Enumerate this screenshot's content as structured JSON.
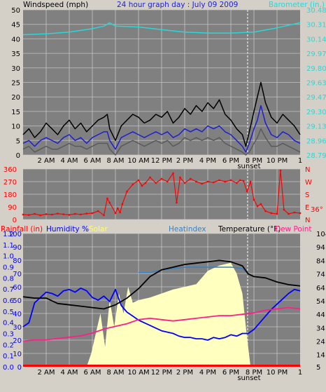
{
  "header": {
    "windspeed_label": "Windspeed (mph)",
    "title": "24 hour graph day : July 09 2009",
    "barometer_label": "Barometer (in.)"
  },
  "legend": {
    "rainfall": "Rainfall (in)",
    "humidity": "Humidity %",
    "solar": "Solar",
    "heatindex": "Heatindex",
    "temperature": "Temperature (°F)",
    "dewpoint": "Dew Point"
  },
  "colors": {
    "plot_bg": "#808080",
    "page_bg": "#d4d0c8",
    "wind_gust": "#000000",
    "wind_avg": "#1f1fd0",
    "wind_low": "#5a5a5a",
    "barometer": "#27d8d8",
    "direction": "#ff0000",
    "rainfall_label": "#ff0000",
    "humidity": "#0000ff",
    "solar": "#ffffc0",
    "solar_label": "#ffff66",
    "heatindex": "#3a7fc0",
    "temperature": "#000000",
    "dewpoint": "#ff1f8a",
    "rain_axis": "#0000ff",
    "gridlines": "#c8c8c8"
  },
  "time_axis": {
    "labels": [
      "2 AM",
      "4 AM",
      "6 AM",
      "8 AM",
      "10 AM",
      "12 PM",
      "2 PM",
      "4 PM",
      "6 PM",
      "8 PM",
      "10 PM",
      "1"
    ],
    "sunset_label": "sunset"
  },
  "chart_data": [
    {
      "type": "line",
      "panel": "wind",
      "x_unit": "hours since midnight",
      "xlim": [
        0,
        24
      ],
      "left_axis": {
        "ticks": [
          0,
          5,
          10,
          15,
          20,
          25,
          30,
          35,
          40,
          45,
          50
        ],
        "ylim": [
          0,
          50
        ]
      },
      "right_axis": {
        "ticks": [
          28.79,
          28.96,
          29.13,
          29.3,
          29.47,
          29.63,
          29.8,
          29.97,
          30.14,
          30.31,
          30.48
        ]
      },
      "series": [
        {
          "name": "Gust",
          "x": [
            0,
            0.5,
            1,
            1.5,
            2,
            2.5,
            3,
            3.5,
            4,
            4.5,
            5,
            5.5,
            6,
            6.5,
            7,
            7.3,
            7.5,
            8,
            8.5,
            9,
            9.5,
            10,
            10.5,
            11,
            11.5,
            12,
            12.5,
            13,
            13.5,
            14,
            14.5,
            15,
            15.5,
            16,
            16.5,
            17,
            17.5,
            18,
            18.5,
            19,
            19.3,
            19.6,
            20,
            20.3,
            20.6,
            21,
            21.5,
            22,
            22.5,
            23,
            23.5,
            24
          ],
          "values": [
            7,
            9,
            6,
            8,
            11,
            9,
            7,
            10,
            12,
            9,
            11,
            8,
            10,
            12,
            13,
            14,
            9,
            5,
            10,
            12,
            14,
            13,
            11,
            12,
            14,
            13,
            15,
            11,
            13,
            16,
            14,
            17,
            15,
            18,
            16,
            19,
            14,
            12,
            9,
            7,
            3,
            8,
            15,
            20,
            25,
            18,
            13,
            11,
            14,
            12,
            10,
            7
          ]
        },
        {
          "name": "Average",
          "x": [
            0,
            0.5,
            1,
            1.5,
            2,
            2.5,
            3,
            3.5,
            4,
            4.5,
            5,
            5.5,
            6,
            6.5,
            7,
            7.3,
            7.5,
            8,
            8.5,
            9,
            9.5,
            10,
            10.5,
            11,
            11.5,
            12,
            12.5,
            13,
            13.5,
            14,
            14.5,
            15,
            15.5,
            16,
            16.5,
            17,
            17.5,
            18,
            18.5,
            19,
            19.3,
            19.6,
            20,
            20.3,
            20.6,
            21,
            21.5,
            22,
            22.5,
            23,
            23.5,
            24
          ],
          "values": [
            4,
            5,
            3,
            5,
            6,
            5,
            4,
            6,
            7,
            5,
            6,
            4,
            6,
            7,
            8,
            8,
            5,
            2,
            6,
            7,
            8,
            7,
            6,
            7,
            8,
            7,
            8,
            6,
            7,
            9,
            8,
            9,
            8,
            10,
            9,
            10,
            8,
            7,
            5,
            3,
            1,
            4,
            9,
            12,
            17,
            11,
            7,
            6,
            8,
            7,
            5,
            4
          ]
        },
        {
          "name": "Low",
          "x": [
            0,
            0.5,
            1,
            1.5,
            2,
            2.5,
            3,
            3.5,
            4,
            4.5,
            5,
            5.5,
            6,
            6.5,
            7,
            7.3,
            7.5,
            8,
            8.5,
            9,
            9.5,
            10,
            10.5,
            11,
            11.5,
            12,
            12.5,
            13,
            13.5,
            14,
            14.5,
            15,
            15.5,
            16,
            16.5,
            17,
            17.5,
            18,
            18.5,
            19,
            19.3,
            19.6,
            20,
            20.3,
            20.6,
            21,
            21.5,
            22,
            22.5,
            23,
            23.5,
            24
          ],
          "values": [
            2,
            3,
            1,
            2,
            3,
            2,
            2,
            3,
            4,
            3,
            3,
            2,
            3,
            4,
            4,
            4,
            2,
            0,
            3,
            4,
            5,
            4,
            3,
            4,
            5,
            4,
            5,
            3,
            4,
            6,
            5,
            6,
            5,
            6,
            5,
            6,
            4,
            3,
            2,
            1,
            0,
            1,
            4,
            6,
            9,
            6,
            3,
            3,
            4,
            3,
            2,
            1
          ]
        },
        {
          "name": "Barometer",
          "axis": "right",
          "x": [
            0,
            2,
            4,
            6,
            7,
            7.5,
            8,
            10,
            12,
            14,
            16,
            18,
            20,
            22,
            24
          ],
          "values": [
            30.19,
            30.2,
            30.22,
            30.26,
            30.29,
            30.33,
            30.29,
            30.28,
            30.25,
            30.22,
            30.21,
            30.21,
            30.22,
            30.27,
            30.33
          ]
        }
      ]
    },
    {
      "type": "scatter",
      "panel": "direction",
      "xlim": [
        0,
        24
      ],
      "left_axis": {
        "ticks": [
          0,
          90,
          180,
          270,
          360
        ],
        "ylim": [
          0,
          360
        ]
      },
      "right_axis_labels": [
        "N",
        "E",
        "S",
        "W",
        "N"
      ],
      "annotation": "36°",
      "series": [
        {
          "name": "Direction",
          "x": [
            0,
            0.5,
            1,
            1.5,
            2,
            2.5,
            3,
            3.5,
            4,
            4.5,
            5,
            5.5,
            6,
            6.5,
            7,
            7.3,
            7.5,
            8,
            8.2,
            8.4,
            8.6,
            9,
            9.5,
            10,
            10.3,
            10.6,
            11,
            11.5,
            12,
            12.5,
            13,
            13.3,
            13.6,
            14,
            14.5,
            15,
            15.5,
            16,
            16.5,
            17,
            17.5,
            18,
            18.5,
            18.8,
            19.1,
            19.4,
            19.7,
            20,
            20.3,
            20.6,
            21,
            21.5,
            22,
            22.3,
            22.6,
            23,
            23.5,
            24
          ],
          "values": [
            35,
            32,
            40,
            30,
            38,
            35,
            42,
            37,
            33,
            40,
            36,
            42,
            45,
            60,
            30,
            150,
            120,
            45,
            80,
            50,
            110,
            200,
            250,
            280,
            240,
            260,
            300,
            260,
            290,
            270,
            330,
            120,
            300,
            260,
            290,
            270,
            255,
            270,
            265,
            280,
            270,
            280,
            260,
            280,
            275,
            200,
            270,
            140,
            95,
            110,
            60,
            45,
            40,
            350,
            70,
            40,
            50,
            45
          ]
        }
      ]
    },
    {
      "type": "line",
      "panel": "temp_humidity",
      "xlim": [
        0,
        24
      ],
      "left_axis_rain": {
        "ticks": [
          0.0,
          0.1,
          0.2,
          0.3,
          0.4,
          0.5,
          0.6,
          0.7,
          0.8,
          0.9,
          1.0,
          1.1,
          1.2
        ],
        "ylim": [
          0.0,
          1.2
        ]
      },
      "left_axis_humidity": {
        "ticks": [
          0,
          10,
          20,
          30,
          40,
          50,
          60,
          70,
          80,
          90,
          100
        ],
        "ylim": [
          0,
          100
        ]
      },
      "right_axis": {
        "ticks": [
          5,
          14,
          24,
          34,
          44,
          54,
          64,
          74,
          84,
          94,
          104
        ],
        "ylim": [
          5,
          104
        ]
      },
      "rainfall_total": 0.0,
      "series": [
        {
          "name": "Humidity",
          "axis": "humidity",
          "x": [
            0,
            0.5,
            1,
            1.5,
            2,
            2.5,
            3,
            3.5,
            4,
            4.5,
            5,
            5.5,
            6,
            6.5,
            7,
            7.5,
            8,
            8.5,
            9,
            9.5,
            10,
            10.5,
            11,
            11.5,
            12,
            12.5,
            13,
            13.5,
            14,
            14.5,
            15,
            15.5,
            16,
            16.5,
            17,
            17.5,
            18,
            18.5,
            19,
            19.5,
            20,
            20.5,
            21,
            21.5,
            22,
            22.5,
            23,
            23.5,
            24
          ],
          "values": [
            30,
            33,
            48,
            52,
            56,
            55,
            53,
            57,
            58,
            56,
            59,
            57,
            52,
            50,
            53,
            49,
            58,
            46,
            41,
            38,
            35,
            33,
            31,
            29,
            27,
            26,
            25,
            23,
            22,
            22,
            21,
            21,
            20,
            22,
            21,
            22,
            24,
            23,
            25,
            25,
            28,
            33,
            38,
            43,
            47,
            51,
            55,
            58,
            57
          ]
        },
        {
          "name": "Solar",
          "x": [
            0,
            5.5,
            5.9,
            6.3,
            6.7,
            7.1,
            7.5,
            7.9,
            8.3,
            8.7,
            9.1,
            9.5,
            10,
            11,
            12,
            13,
            14,
            15,
            16,
            17,
            18,
            18.5,
            19,
            19.3,
            19.7,
            24
          ],
          "values": [
            0,
            0,
            10,
            25,
            40,
            15,
            50,
            30,
            55,
            40,
            60,
            48,
            50,
            52,
            55,
            58,
            60,
            62,
            72,
            76,
            78,
            70,
            55,
            30,
            0,
            0
          ]
        },
        {
          "name": "Dew Point",
          "axis": "right",
          "x": [
            0,
            1,
            2,
            3,
            4,
            5,
            6,
            7,
            8,
            9,
            10,
            11,
            12,
            13,
            14,
            15,
            16,
            17,
            18,
            19,
            20,
            21,
            22,
            23,
            24
          ],
          "values": [
            24,
            25,
            25,
            26,
            27,
            28,
            30,
            33,
            35,
            37,
            40,
            41,
            40,
            39,
            40,
            41,
            42,
            43,
            43,
            44,
            45,
            47,
            48,
            49,
            48
          ]
        },
        {
          "name": "Temperature",
          "axis": "right",
          "x": [
            0,
            1,
            2,
            3,
            4,
            5,
            6,
            7,
            8,
            9,
            10,
            11,
            12,
            13,
            14,
            15,
            16,
            17,
            18,
            19,
            19.5,
            20,
            21,
            22,
            23,
            24
          ],
          "values": [
            57,
            56,
            56,
            52,
            51,
            50,
            49,
            48,
            51,
            56,
            63,
            72,
            77,
            79,
            81,
            82,
            83,
            84,
            83,
            80,
            74,
            72,
            71,
            68,
            66,
            65
          ]
        },
        {
          "name": "Heatindex",
          "axis": "right",
          "x": [
            10,
            11,
            12,
            13,
            14,
            15,
            16,
            17,
            18,
            19,
            19.5
          ],
          "values": [
            75,
            75,
            77,
            78,
            79,
            79,
            79,
            79,
            79,
            78,
            74
          ]
        }
      ]
    }
  ]
}
